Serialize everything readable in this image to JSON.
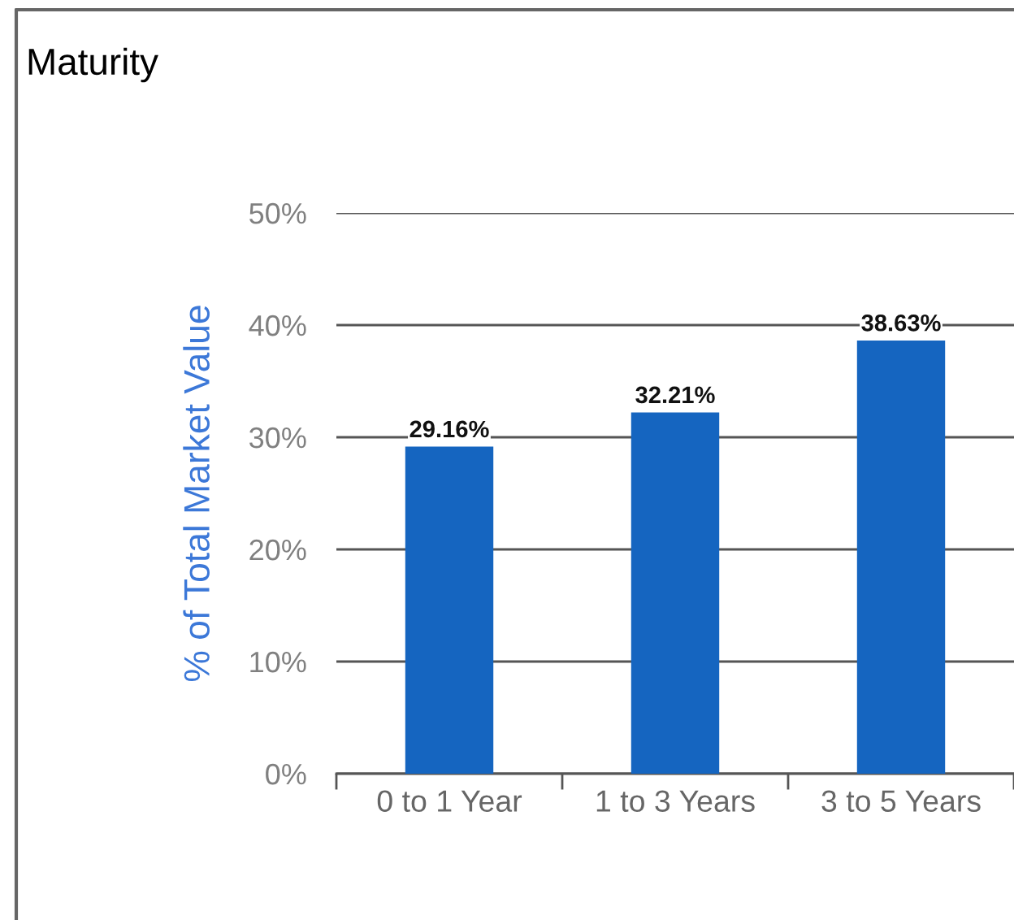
{
  "chart_data": {
    "type": "bar",
    "title": "Maturity",
    "ylabel": "% of Total Market Value",
    "categories": [
      "0 to 1 Year",
      "1 to 3 Years",
      "3 to 5 Years"
    ],
    "values": [
      29.16,
      32.21,
      38.63
    ],
    "color": "#1565c0",
    "value_labels": [
      "29.16%",
      "32.21%",
      "38.63%"
    ],
    "ylim": [
      0,
      50
    ],
    "yticks": [
      {
        "value": 0,
        "label": "0%"
      },
      {
        "value": 10,
        "label": "10%"
      },
      {
        "value": 20,
        "label": "20%"
      },
      {
        "value": 30,
        "label": "30%"
      },
      {
        "value": 40,
        "label": "40%"
      },
      {
        "value": 50,
        "label": "50%"
      }
    ],
    "grid": "y"
  }
}
